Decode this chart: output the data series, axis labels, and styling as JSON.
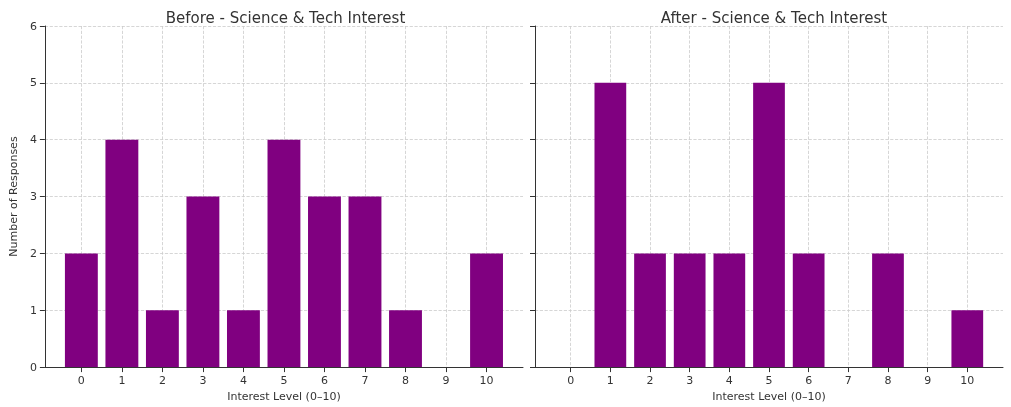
{
  "chart_data": [
    {
      "type": "bar",
      "title": "Before - Science & Tech Interest",
      "xlabel": "Interest Level (0–10)",
      "ylabel": "Number of Responses",
      "x": [
        0,
        1,
        2,
        3,
        4,
        5,
        6,
        7,
        8,
        9,
        10
      ],
      "values": [
        2,
        4,
        1,
        3,
        1,
        4,
        3,
        3,
        1,
        0,
        2
      ],
      "color": "#800080",
      "xlim": [
        -0.9,
        10.9
      ],
      "xticks": [
        0,
        1,
        2,
        3,
        4,
        5,
        6,
        7,
        8,
        9,
        10
      ],
      "ylim": [
        0,
        6
      ],
      "yticks": [
        0,
        1,
        2,
        3,
        4,
        5,
        6
      ],
      "grid": true
    },
    {
      "type": "bar",
      "title": "After - Science & Tech Interest",
      "xlabel": "Interest Level (0–10)",
      "x": [
        0,
        1,
        2,
        3,
        4,
        5,
        6,
        7,
        8,
        9,
        10
      ],
      "values": [
        0,
        5,
        2,
        2,
        2,
        5,
        2,
        0,
        2,
        0,
        1
      ],
      "color": "#800080",
      "xlim": [
        -0.9,
        10.9
      ],
      "xticks": [
        0,
        1,
        2,
        3,
        4,
        5,
        6,
        7,
        8,
        9,
        10
      ],
      "ylim": [
        0,
        6
      ],
      "yticks": [
        0,
        1,
        2,
        3,
        4,
        5,
        6
      ],
      "grid": true,
      "tick_labels": "x"
    }
  ]
}
